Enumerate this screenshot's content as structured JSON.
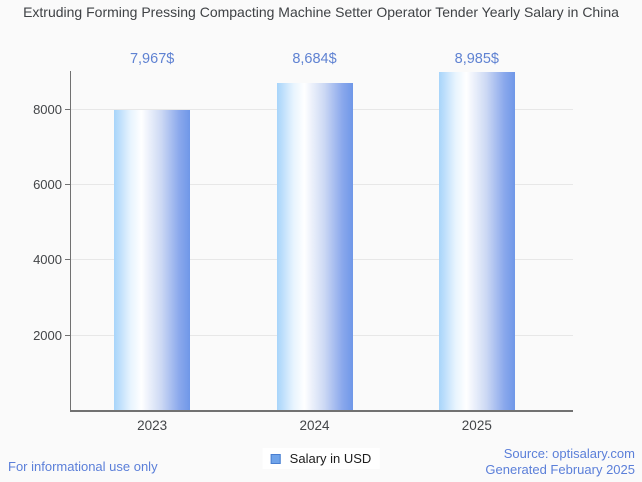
{
  "chart_data": {
    "type": "bar",
    "title": "Extruding Forming Pressing Compacting Machine Setter Operator Tender Yearly Salary in China",
    "categories": [
      "2023",
      "2024",
      "2025"
    ],
    "series": [
      {
        "name": "Salary in USD",
        "values": [
          7967,
          8684,
          8985
        ]
      }
    ],
    "value_labels": [
      "7,967$",
      "8,684$",
      "8,985$"
    ],
    "xlabel": "",
    "ylabel": "",
    "ylim": [
      0,
      9000
    ],
    "yticks": [
      2000,
      4000,
      6000,
      8000
    ],
    "grid": true,
    "legend_position": "bottom"
  },
  "legend": {
    "label": "Salary in USD"
  },
  "footer": {
    "left": "For informational use only",
    "source": "Source: optisalary.com",
    "generated": "Generated February 2025"
  },
  "colors": {
    "background": "#fafafa",
    "title_text": "#3f4245",
    "value_label_text": "#5f82d2",
    "footer_text": "#5b7fd9",
    "axis_line": "#717171",
    "gridline": "#e7e7e7",
    "tick_label_text": "#434548",
    "bar_gradient_light": "#a7d4fa",
    "bar_gradient_dark": "#6f97e8",
    "legend_swatch_fill": "#6fa3e9",
    "legend_swatch_border": "#4a7fd1"
  }
}
